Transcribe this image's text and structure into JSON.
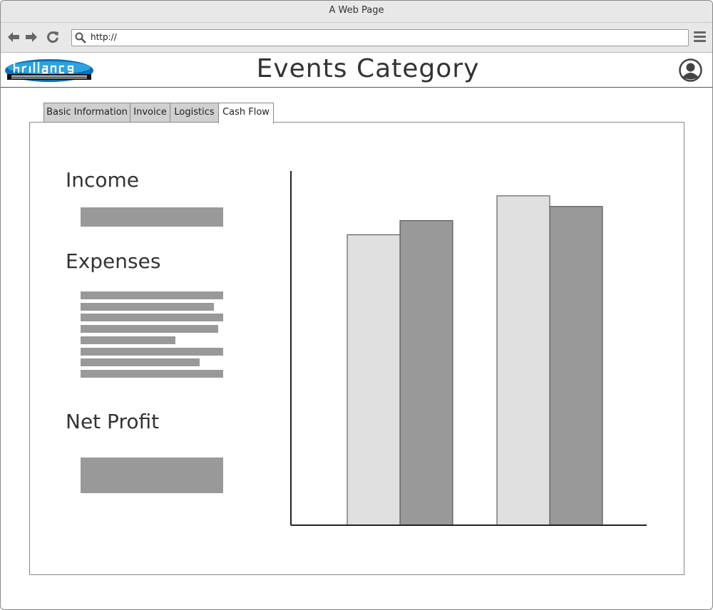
{
  "window": {
    "title": "A Web Page"
  },
  "browser": {
    "url": "http://"
  },
  "header": {
    "title": "Events Category",
    "logo_alt": "Brilliance event management logo"
  },
  "tabs": [
    {
      "label": "Basic Information",
      "active": false
    },
    {
      "label": "Invoice",
      "active": false
    },
    {
      "label": "Logistics",
      "active": false
    },
    {
      "label": "Cash Flow",
      "active": true
    }
  ],
  "sections": {
    "income": "Income",
    "expenses": "Expenses",
    "net_profit": "Net Profit"
  },
  "colors": {
    "bar_light": "#e0e0e0",
    "bar_dark": "#999999",
    "placeholder": "#999999"
  },
  "icons": {
    "back": "arrow-left-icon",
    "forward": "arrow-right-icon",
    "reload": "reload-icon",
    "search": "search-icon",
    "menu": "hamburger-menu-icon",
    "user": "user-avatar-icon"
  },
  "chart_data": {
    "type": "bar",
    "categories": [
      "",
      ""
    ],
    "series": [
      {
        "values": [
          82,
          93
        ]
      },
      {
        "values": [
          86,
          90
        ]
      }
    ],
    "ylim": [
      0,
      100
    ],
    "grid": false,
    "title": "",
    "xlabel": "",
    "ylabel": ""
  }
}
